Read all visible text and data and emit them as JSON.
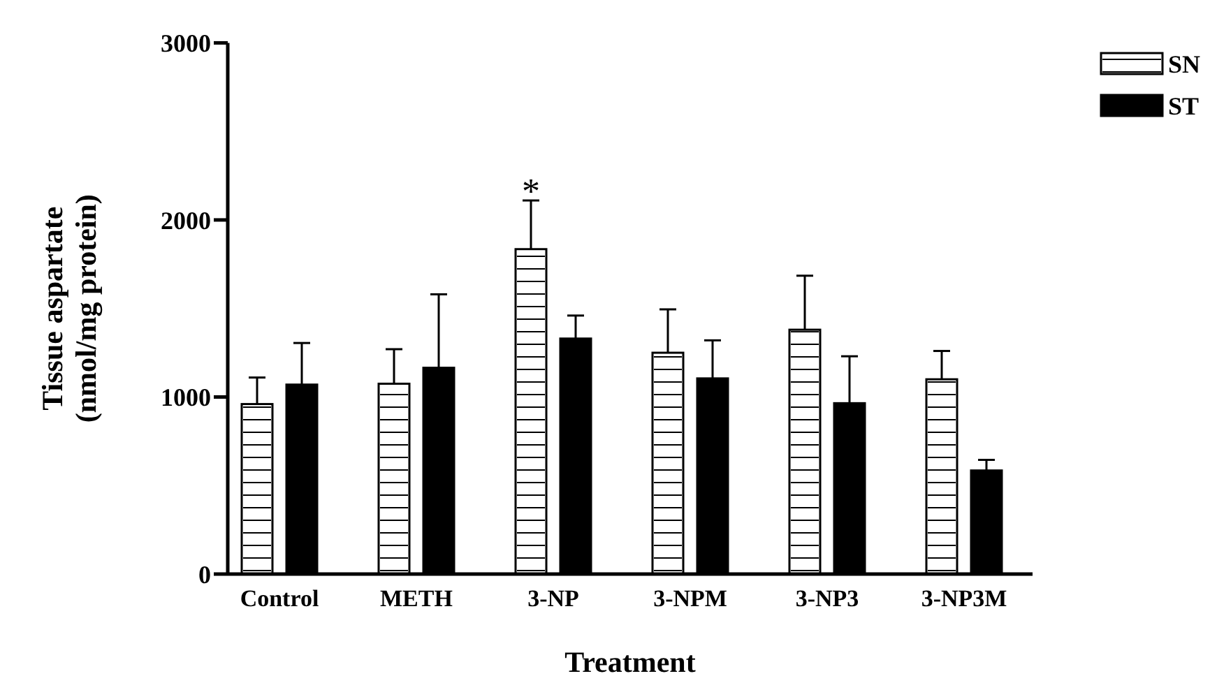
{
  "chart_data": {
    "type": "bar",
    "xlabel": "Treatment",
    "ylabel": "Tissue aspartate\n(nmol/mg protein)",
    "categories": [
      "Control",
      "METH",
      "3-NP",
      "3-NPM",
      "3-NP3",
      "3-NP3M"
    ],
    "series": [
      {
        "name": "SN",
        "color": "#ffffff",
        "values": [
          960,
          1075,
          1835,
          1250,
          1380,
          1100
        ],
        "errors": [
          [
            960,
            1110
          ],
          [
            1075,
            1270
          ],
          [
            1835,
            2110
          ],
          [
            1250,
            1495
          ],
          [
            1380,
            1685
          ],
          [
            1100,
            1260
          ]
        ]
      },
      {
        "name": "ST",
        "color": "#000000",
        "values": [
          1070,
          1165,
          1330,
          1105,
          965,
          585
        ],
        "errors": [
          [
            1070,
            1305
          ],
          [
            1165,
            1580
          ],
          [
            1330,
            1460
          ],
          [
            1105,
            1320
          ],
          [
            965,
            1230
          ],
          [
            585,
            645
          ]
        ]
      }
    ],
    "ylim": [
      0,
      3000
    ],
    "yticks": [
      0,
      1000,
      2000,
      3000
    ],
    "grid": false,
    "legend": "top right",
    "annotations": [
      "*"
    ]
  }
}
